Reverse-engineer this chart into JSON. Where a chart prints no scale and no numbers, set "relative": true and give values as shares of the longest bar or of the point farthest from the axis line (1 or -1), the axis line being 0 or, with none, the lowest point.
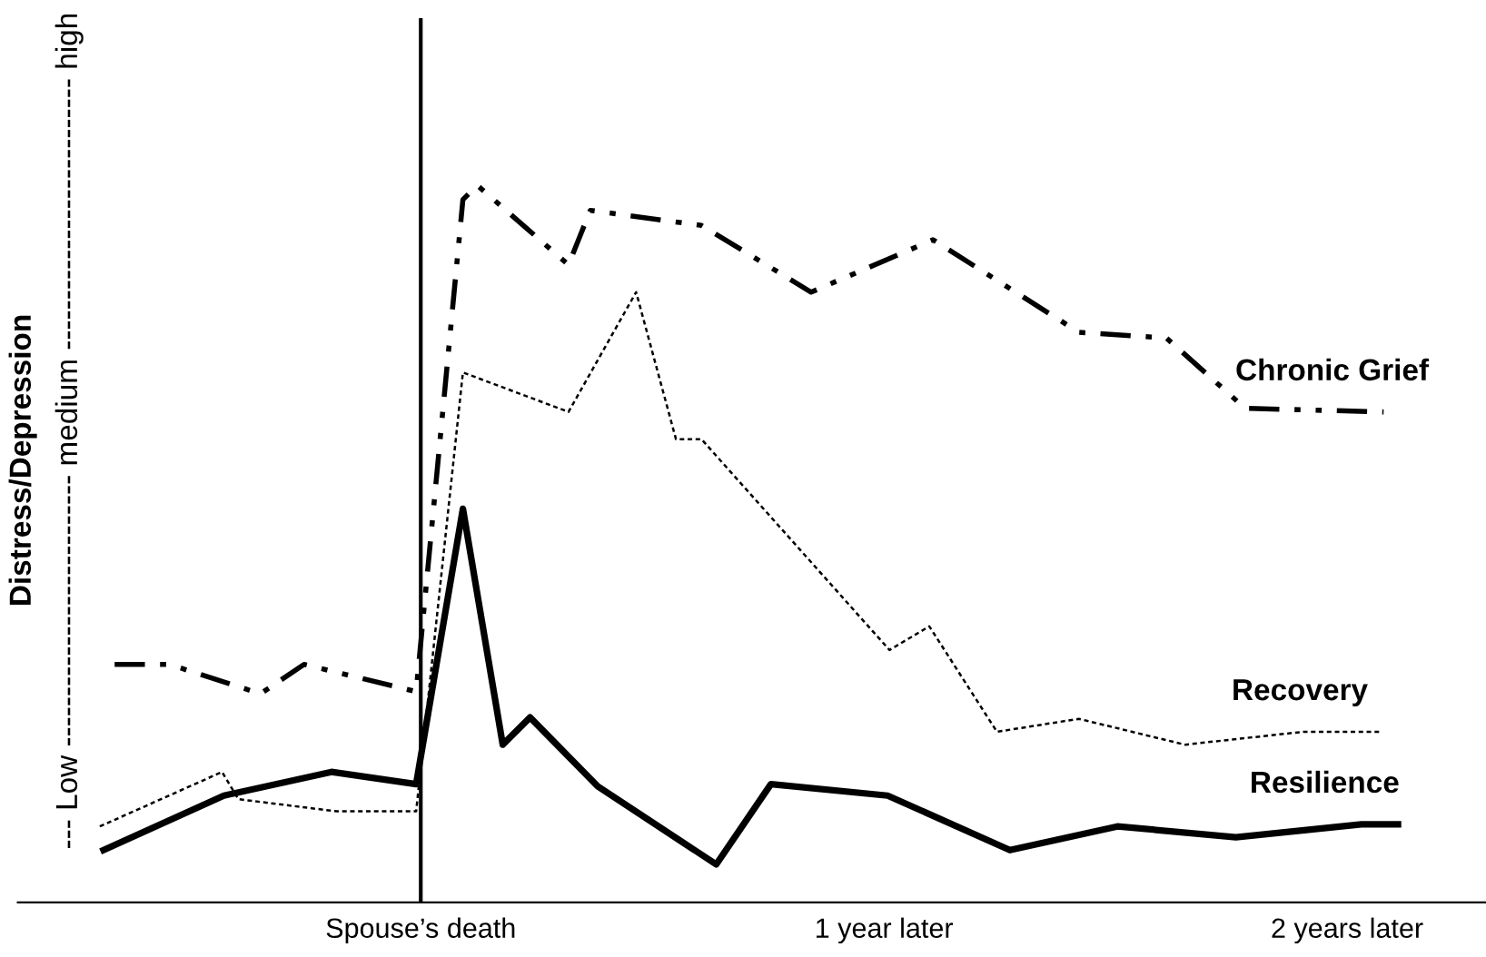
{
  "chart_data": {
    "type": "line",
    "relative": true,
    "ylabel": "Distress/Depression",
    "annotations": [
      "--- Low --------------------------- medium --------------------------- high"
    ],
    "xlim": [
      -0.87,
      2.3
    ],
    "xticks": [
      {
        "value": 0,
        "label": "Spouse’s death"
      },
      {
        "value": 1,
        "label": "1 year later"
      },
      {
        "value": 2,
        "label": "2 years later"
      }
    ],
    "ref_lines": [
      {
        "axis": "x",
        "value": 0,
        "color": "#000000",
        "line_style": "solid"
      }
    ],
    "grid": false,
    "legend": false,
    "marker": "none",
    "series": [
      {
        "name": "Chronic Grief",
        "color": "#000000",
        "line_style": "dashdot",
        "x": [
          -0.661,
          -0.543,
          -0.346,
          -0.252,
          -0.01,
          0.091,
          0.122,
          0.319,
          0.366,
          0.606,
          0.843,
          1.106,
          1.421,
          1.61,
          1.78,
          2.079
        ],
        "values": [
          0.332,
          0.332,
          0.291,
          0.332,
          0.294,
          0.98,
          1.0,
          0.889,
          0.965,
          0.944,
          0.851,
          0.924,
          0.795,
          0.787,
          0.689,
          0.684
        ]
      },
      {
        "name": "Recovery",
        "color": "#000000",
        "line_style": "dotted",
        "x": [
          -0.693,
          -0.429,
          -0.394,
          -0.181,
          -0.01,
          0.091,
          0.319,
          0.465,
          0.551,
          0.606,
          1.012,
          1.098,
          1.244,
          1.421,
          1.65,
          1.906,
          2.071
        ],
        "values": [
          0.106,
          0.182,
          0.144,
          0.127,
          0.127,
          0.739,
          0.684,
          0.851,
          0.646,
          0.646,
          0.352,
          0.385,
          0.238,
          0.256,
          0.22,
          0.238,
          0.238
        ]
      },
      {
        "name": "Resilience",
        "color": "#000000",
        "line_style": "solid",
        "x": [
          -0.685,
          -0.425,
          -0.193,
          -0.01,
          0.091,
          0.177,
          0.236,
          0.382,
          0.638,
          0.756,
          1.008,
          1.272,
          1.504,
          1.76,
          2.031,
          2.11
        ],
        "values": [
          0.073,
          0.149,
          0.182,
          0.165,
          0.549,
          0.22,
          0.258,
          0.162,
          0.053,
          0.165,
          0.149,
          0.073,
          0.106,
          0.091,
          0.109,
          0.109
        ]
      }
    ]
  }
}
